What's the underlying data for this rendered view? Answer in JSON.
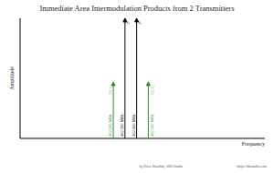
{
  "chart_data": {
    "type": "stem",
    "title": "Immediate Area Intermodulation Products from 2 Transmitters",
    "x_label": "Frequency",
    "y_label": "Amplitude",
    "x": [
      462.2,
      462.3,
      462.4,
      462.5
    ],
    "values": [
      47,
      100,
      100,
      47
    ],
    "colors": [
      "#2e8b2e",
      "#000000",
      "#000000",
      "#2e8b2e"
    ],
    "annotations": [
      "2f₁-f₂",
      "f₁",
      "f₂",
      "2f₂-f₁"
    ],
    "xlim": [
      461.4,
      463.5
    ],
    "ylim": [
      0,
      100
    ],
    "xticks": [
      {
        "value": 462.2,
        "label": "462.200 MHz"
      },
      {
        "value": 462.3,
        "label": "462.300 MHz"
      },
      {
        "value": 462.4,
        "label": "462.400 MHz"
      },
      {
        "value": 462.5,
        "label": "462.500 MHz"
      }
    ],
    "tick_labels": "x",
    "credit": "by Dave Bourbin, tBB Studio",
    "url": "https://bbstudio.com"
  }
}
